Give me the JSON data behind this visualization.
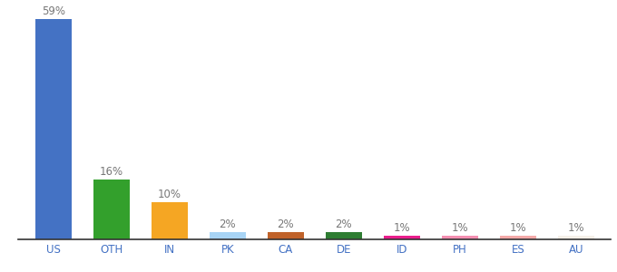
{
  "categories": [
    "US",
    "OTH",
    "IN",
    "PK",
    "CA",
    "DE",
    "ID",
    "PH",
    "ES",
    "AU"
  ],
  "values": [
    59,
    16,
    10,
    2,
    2,
    2,
    1,
    1,
    1,
    1
  ],
  "labels": [
    "59%",
    "16%",
    "10%",
    "2%",
    "2%",
    "2%",
    "1%",
    "1%",
    "1%",
    "1%"
  ],
  "bar_colors": [
    "#4472c4",
    "#33a02c",
    "#f5a623",
    "#a8d4f5",
    "#c0622a",
    "#2e7d32",
    "#e91e8c",
    "#f48fb1",
    "#f4a9a8",
    "#f5f0e8"
  ],
  "ylim": [
    0,
    62
  ],
  "background_color": "#ffffff",
  "label_fontsize": 8.5,
  "tick_fontsize": 8.5,
  "bar_width": 0.62
}
